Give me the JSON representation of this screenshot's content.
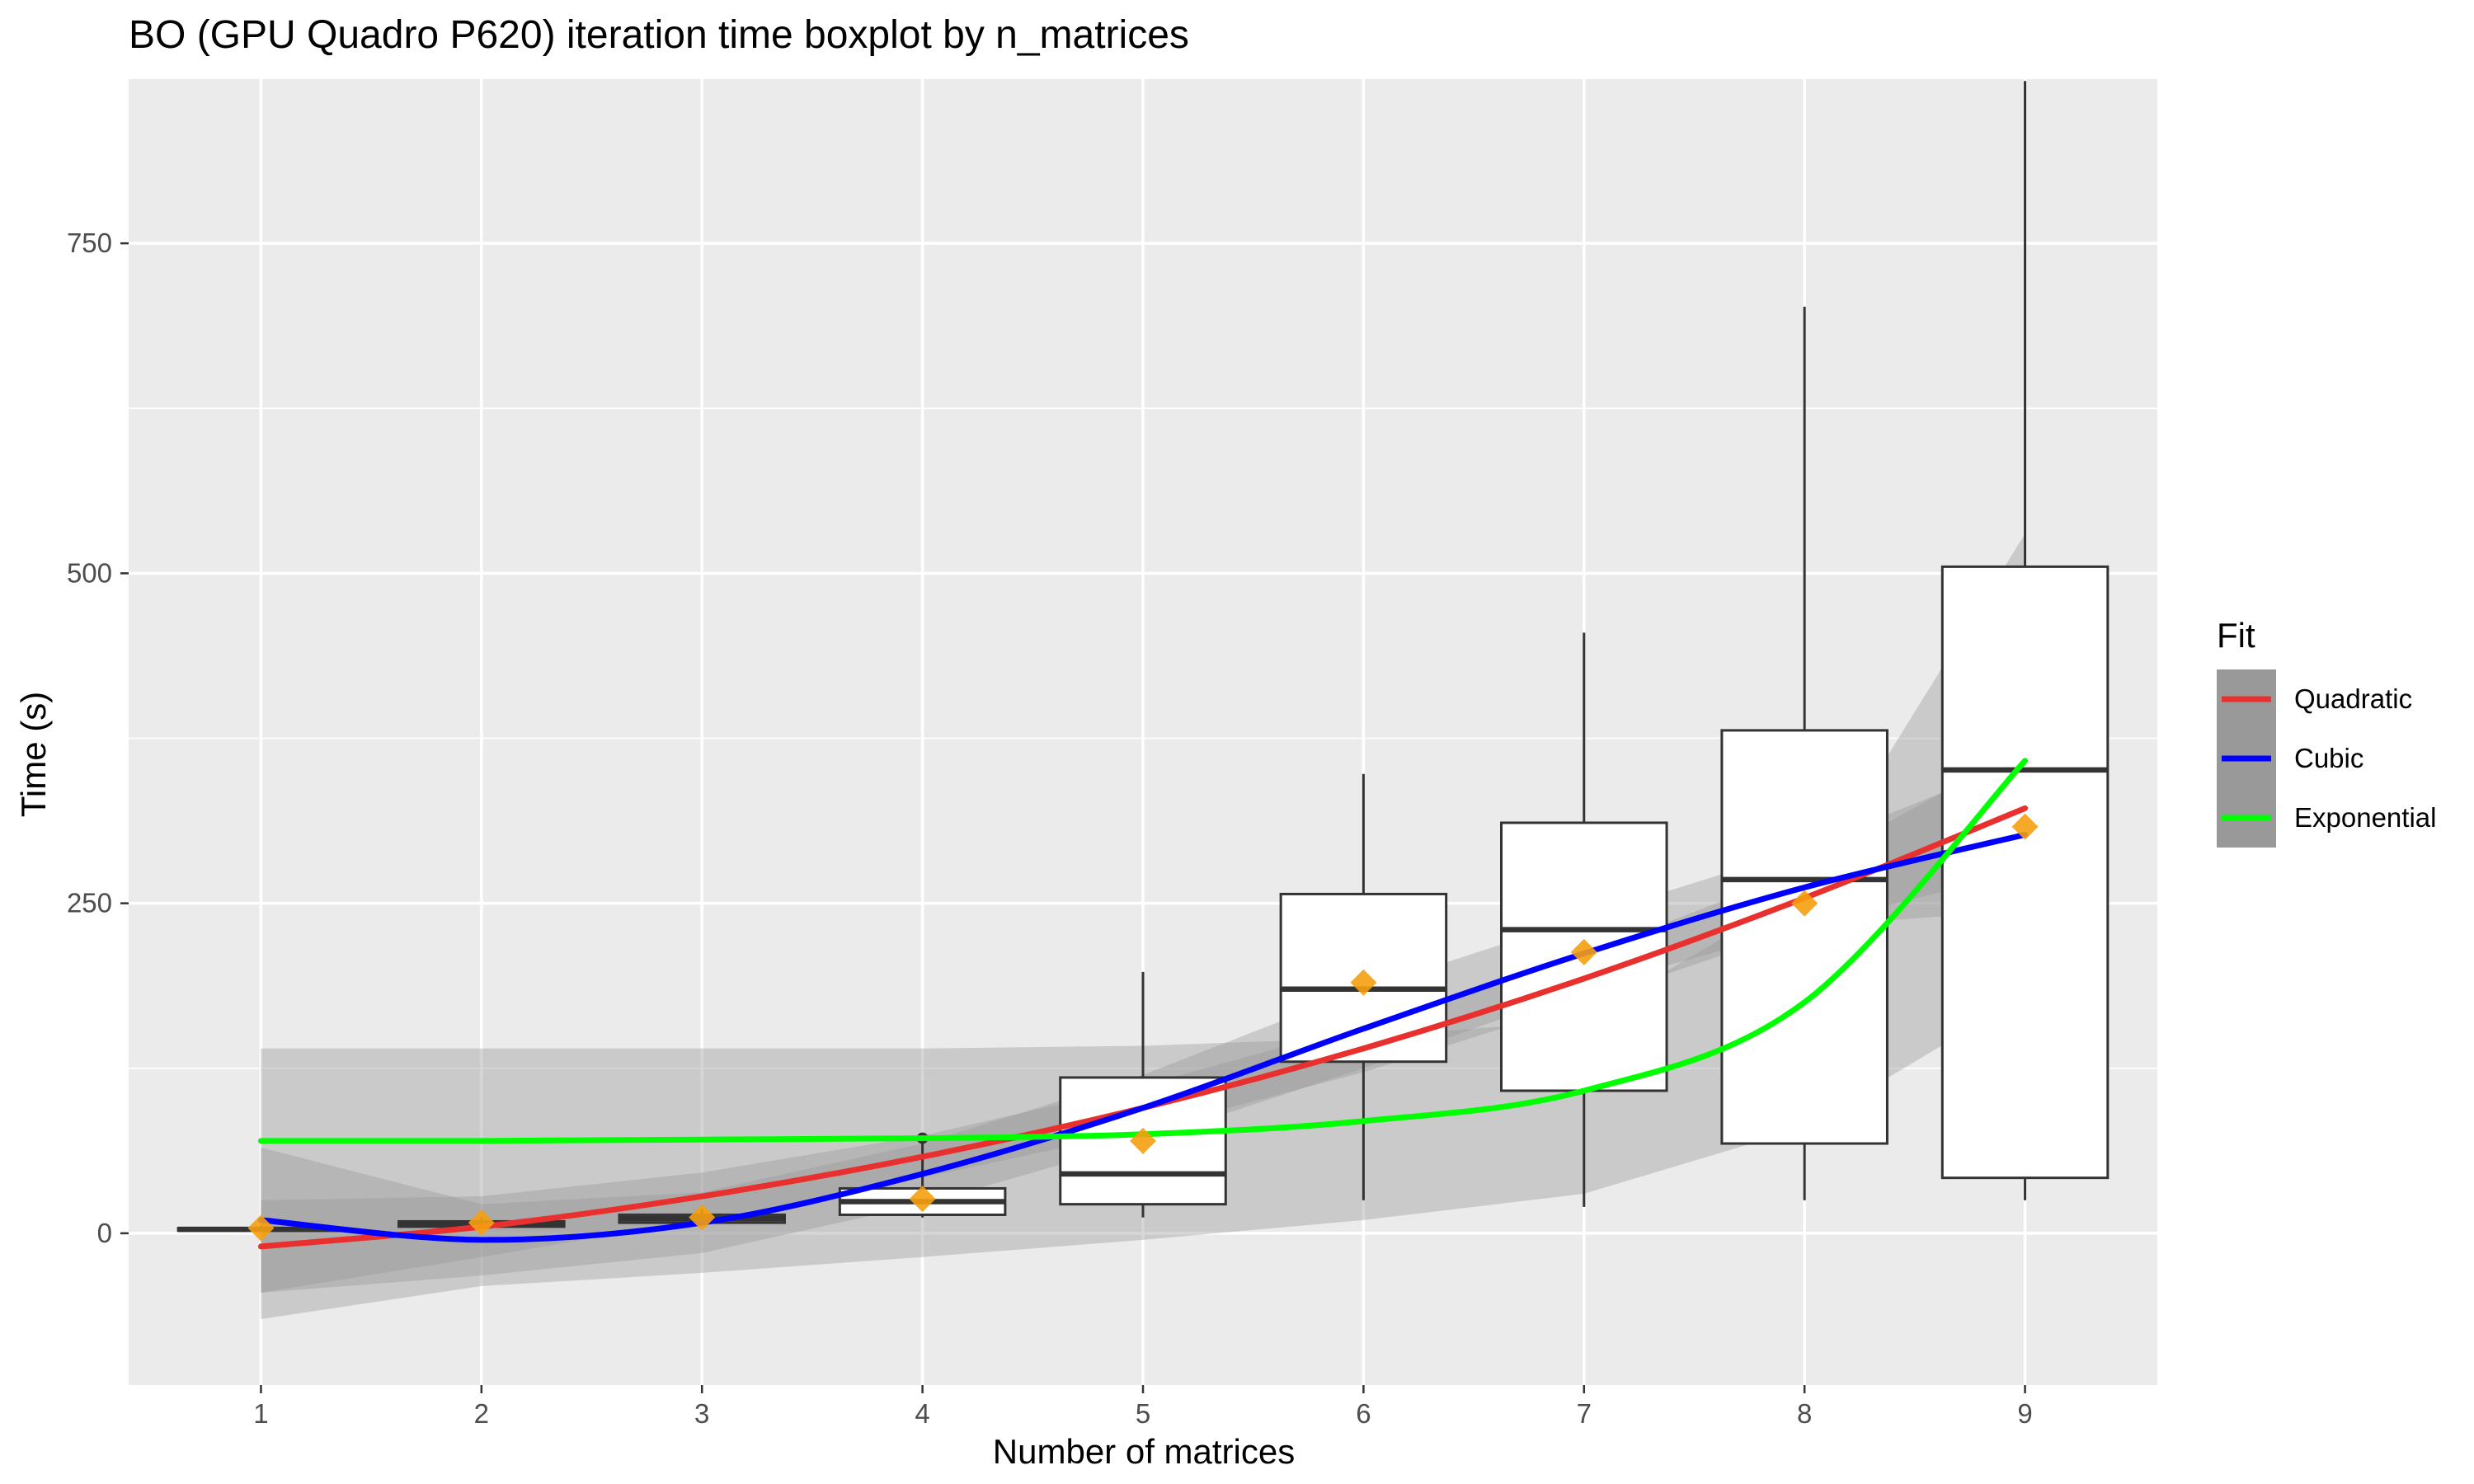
{
  "chart_data": {
    "type": "boxplot",
    "title": "BO (GPU Quadro P620) iteration time boxplot by n_matrices",
    "xlabel": "Number of matrices",
    "ylabel": "Time (s)",
    "xlim": [
      0.4,
      9.6
    ],
    "ylim": [
      -115,
      875
    ],
    "x_ticks": [
      1,
      2,
      3,
      4,
      5,
      6,
      7,
      8,
      9
    ],
    "y_ticks": [
      0,
      250,
      500,
      750
    ],
    "grid": true,
    "legend_position": "right",
    "legend_title": "Fit",
    "colors": {
      "panel_bg": "#ebebeb",
      "grid": "#ffffff",
      "box_fill": "#ffffff",
      "box_line": "#333333",
      "mean_marker": "#f5a00f",
      "ribbon": "#999999"
    },
    "boxes": [
      {
        "x": 1,
        "min": 1,
        "q1": 2,
        "median": 3,
        "q3": 4,
        "max": 6,
        "mean": 4
      },
      {
        "x": 2,
        "min": 4,
        "q1": 5,
        "median": 7,
        "q3": 9,
        "max": 12,
        "mean": 8
      },
      {
        "x": 3,
        "min": 7,
        "q1": 8,
        "median": 11,
        "q3": 14,
        "max": 18,
        "mean": 12
      },
      {
        "x": 4,
        "min": 12,
        "q1": 14,
        "median": 24,
        "q3": 34,
        "max": 72,
        "mean": 26,
        "outliers": [
          72
        ]
      },
      {
        "x": 5,
        "min": 12,
        "q1": 22,
        "median": 45,
        "q3": 118,
        "max": 198,
        "mean": 70
      },
      {
        "x": 6,
        "min": 25,
        "q1": 130,
        "median": 185,
        "q3": 257,
        "max": 348,
        "mean": 190
      },
      {
        "x": 7,
        "min": 20,
        "q1": 108,
        "median": 230,
        "q3": 311,
        "max": 455,
        "mean": 213
      },
      {
        "x": 8,
        "min": 25,
        "q1": 68,
        "median": 268,
        "q3": 381,
        "max": 702,
        "mean": 250
      },
      {
        "x": 9,
        "min": 25,
        "q1": 42,
        "median": 351,
        "q3": 505,
        "max": 873,
        "mean": 308
      }
    ],
    "series": [
      {
        "name": "Quadratic",
        "color": "#e8302e",
        "x": [
          1,
          2,
          3,
          4,
          5,
          6,
          7,
          8,
          9
        ],
        "y": [
          -10,
          5,
          28,
          58,
          95,
          140,
          193,
          254,
          322
        ],
        "ci_lower": [
          -45,
          -18,
          10,
          42,
          78,
          122,
          175,
          232,
          275
        ],
        "ci_upper": [
          25,
          28,
          46,
          74,
          112,
          158,
          211,
          276,
          369
        ]
      },
      {
        "name": "Cubic",
        "color": "#0000ff",
        "x": [
          1,
          2,
          3,
          4,
          5,
          6,
          7,
          8,
          9
        ],
        "y": [
          10,
          -5,
          8,
          45,
          95,
          155,
          212,
          262,
          302
        ],
        "ci_lower": [
          -45,
          -32,
          -15,
          22,
          70,
          125,
          185,
          232,
          245
        ],
        "ci_upper": [
          65,
          22,
          31,
          68,
          120,
          185,
          239,
          292,
          359
        ]
      },
      {
        "name": "Exponential",
        "color": "#00ff00",
        "x": [
          1,
          2,
          3,
          4,
          5,
          6,
          7,
          8,
          9
        ],
        "y": [
          70,
          70,
          71,
          72,
          75,
          85,
          108,
          175,
          358
        ],
        "ci_lower": [
          -65,
          -40,
          -30,
          -18,
          -5,
          10,
          30,
          80,
          180
        ],
        "ci_upper": [
          140,
          140,
          140,
          140,
          142,
          148,
          162,
          260,
          530
        ]
      }
    ]
  }
}
